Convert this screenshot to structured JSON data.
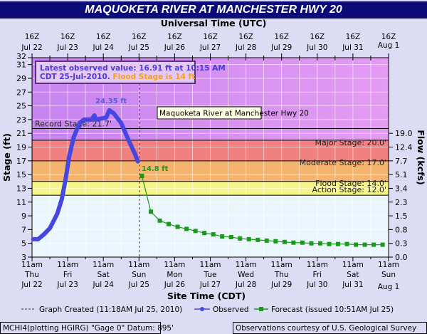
{
  "colors": {
    "title_bg": "#0c0c78",
    "observed": "#4646e0",
    "forecast": "#1a9a1a",
    "major": "#d58cf2",
    "moderate": "#f18080",
    "flood": "#f5b46e",
    "action": "#f6f58a",
    "normal": "#eaf6fc",
    "page_bg": "#dcdcf4"
  },
  "chart_data": {
    "type": "line",
    "title": "MAQUOKETA RIVER AT MANCHESTER HWY 20",
    "top_axis_title": "Universal Time (UTC)",
    "top_ticks": [
      [
        "16Z",
        "Jul 22"
      ],
      [
        "16Z",
        "Jul 23"
      ],
      [
        "16Z",
        "Jul 24"
      ],
      [
        "16Z",
        "Jul 25"
      ],
      [
        "16Z",
        "Jul 26"
      ],
      [
        "16Z",
        "Jul 27"
      ],
      [
        "16Z",
        "Jul 28"
      ],
      [
        "16Z",
        "Jul 29"
      ],
      [
        "16Z",
        "Jul 30"
      ],
      [
        "16Z",
        "Jul 31"
      ],
      [
        "16Z",
        "Aug 1"
      ]
    ],
    "xlabel": "Site Time (CDT)",
    "bottom_ticks": [
      [
        "11am",
        "Thu",
        "Jul 22"
      ],
      [
        "11am",
        "Fri",
        "Jul 23"
      ],
      [
        "11am",
        "Sat",
        "Jul 24"
      ],
      [
        "11am",
        "Sun",
        "Jul 25"
      ],
      [
        "11am",
        "Mon",
        "Jul 26"
      ],
      [
        "11am",
        "Tue",
        "Jul 27"
      ],
      [
        "11am",
        "Wed",
        "Jul 28"
      ],
      [
        "11am",
        "Thu",
        "Jul 29"
      ],
      [
        "11am",
        "Fri",
        "Jul 30"
      ],
      [
        "11am",
        "Sat",
        "Jul 31"
      ],
      [
        "11am",
        "Sun",
        "Aug 1"
      ]
    ],
    "x_unit": "hours since 11am CDT Jul 22",
    "xlim": [
      0,
      240
    ],
    "ylabel": "Stage (ft)",
    "ylim": [
      3,
      32
    ],
    "y_ticks": [
      3,
      5,
      7,
      9,
      11,
      13,
      15,
      17,
      19,
      21,
      23,
      25,
      27,
      29,
      31,
      32
    ],
    "y2label": "Flow (kcfs)",
    "y2_ticks": [
      {
        "stage": 3,
        "label": "0.0"
      },
      {
        "stage": 5,
        "label": "0.3"
      },
      {
        "stage": 7,
        "label": "0.8"
      },
      {
        "stage": 9,
        "label": "1.5"
      },
      {
        "stage": 11,
        "label": "2.3"
      },
      {
        "stage": 13,
        "label": "3.4"
      },
      {
        "stage": 15,
        "label": "5.1"
      },
      {
        "stage": 17,
        "label": "7.7"
      },
      {
        "stage": 19,
        "label": "12.4"
      },
      {
        "stage": 21,
        "label": "19.0"
      }
    ],
    "thresholds": [
      {
        "name": "record",
        "value": 21.7,
        "label": "Record Stage: 21.7'"
      },
      {
        "name": "major",
        "value": 20,
        "label": "Major Stage: 20.0'"
      },
      {
        "name": "moderate",
        "value": 17,
        "label": "Moderate Stage: 17.0'"
      },
      {
        "name": "flood",
        "value": 14,
        "label": "Flood Stage: 14.0'"
      },
      {
        "name": "action",
        "value": 12,
        "label": "Action Stage: 12.0'"
      }
    ],
    "graph_created_x": 72.3,
    "series": [
      {
        "name": "Observed",
        "x": [
          0.8,
          4,
          8,
          12,
          17,
          20,
          22.5,
          25,
          28,
          32,
          35,
          40,
          42,
          43,
          45.5,
          50,
          52,
          55,
          60,
          65,
          69.5,
          71.25
        ],
        "y": [
          5.6,
          5.6,
          6.3,
          7.2,
          9.3,
          11.4,
          14.2,
          17.6,
          20.4,
          22.5,
          23,
          23,
          23.6,
          23,
          23.1,
          23.3,
          24.35,
          23.9,
          22.5,
          20,
          17.9,
          16.91
        ]
      },
      {
        "name": "Forecast",
        "x": [
          74,
          80,
          86,
          92,
          98,
          104,
          110,
          116,
          122,
          128,
          134,
          140,
          146,
          152,
          158,
          164,
          170,
          176,
          182,
          188,
          194,
          200,
          206,
          212,
          218,
          224,
          230,
          236
        ],
        "y": [
          14.8,
          9.6,
          8.3,
          7.8,
          7.4,
          7.1,
          6.8,
          6.5,
          6.3,
          6.0,
          5.9,
          5.7,
          5.6,
          5.5,
          5.4,
          5.3,
          5.2,
          5.1,
          5.1,
          5.0,
          5.0,
          4.9,
          4.9,
          4.9,
          4.8,
          4.8,
          4.8,
          4.8
        ]
      }
    ],
    "annotations": {
      "peak": "24.35 ft",
      "forecast_start": "14.8 ft",
      "tooltip": "Maquoketa River at Manchester Hwy 20"
    },
    "info_box": {
      "line1": "Latest observed value: 16.91 ft at 10:15 AM",
      "line2": "CDT 25-Jul-2010.",
      "line2_flood": "Flood Stage is 14 ft"
    },
    "legend": {
      "created": "Graph Created (11:18AM Jul 25, 2010)",
      "observed": "Observed",
      "forecast": "Forecast (issued 10:51AM Jul 25)"
    }
  },
  "footer": {
    "left": "MCHI4(plotting HGIRG) \"Gage 0\" Datum: 895'",
    "right": "Observations courtesy of U.S. Geological Survey"
  }
}
